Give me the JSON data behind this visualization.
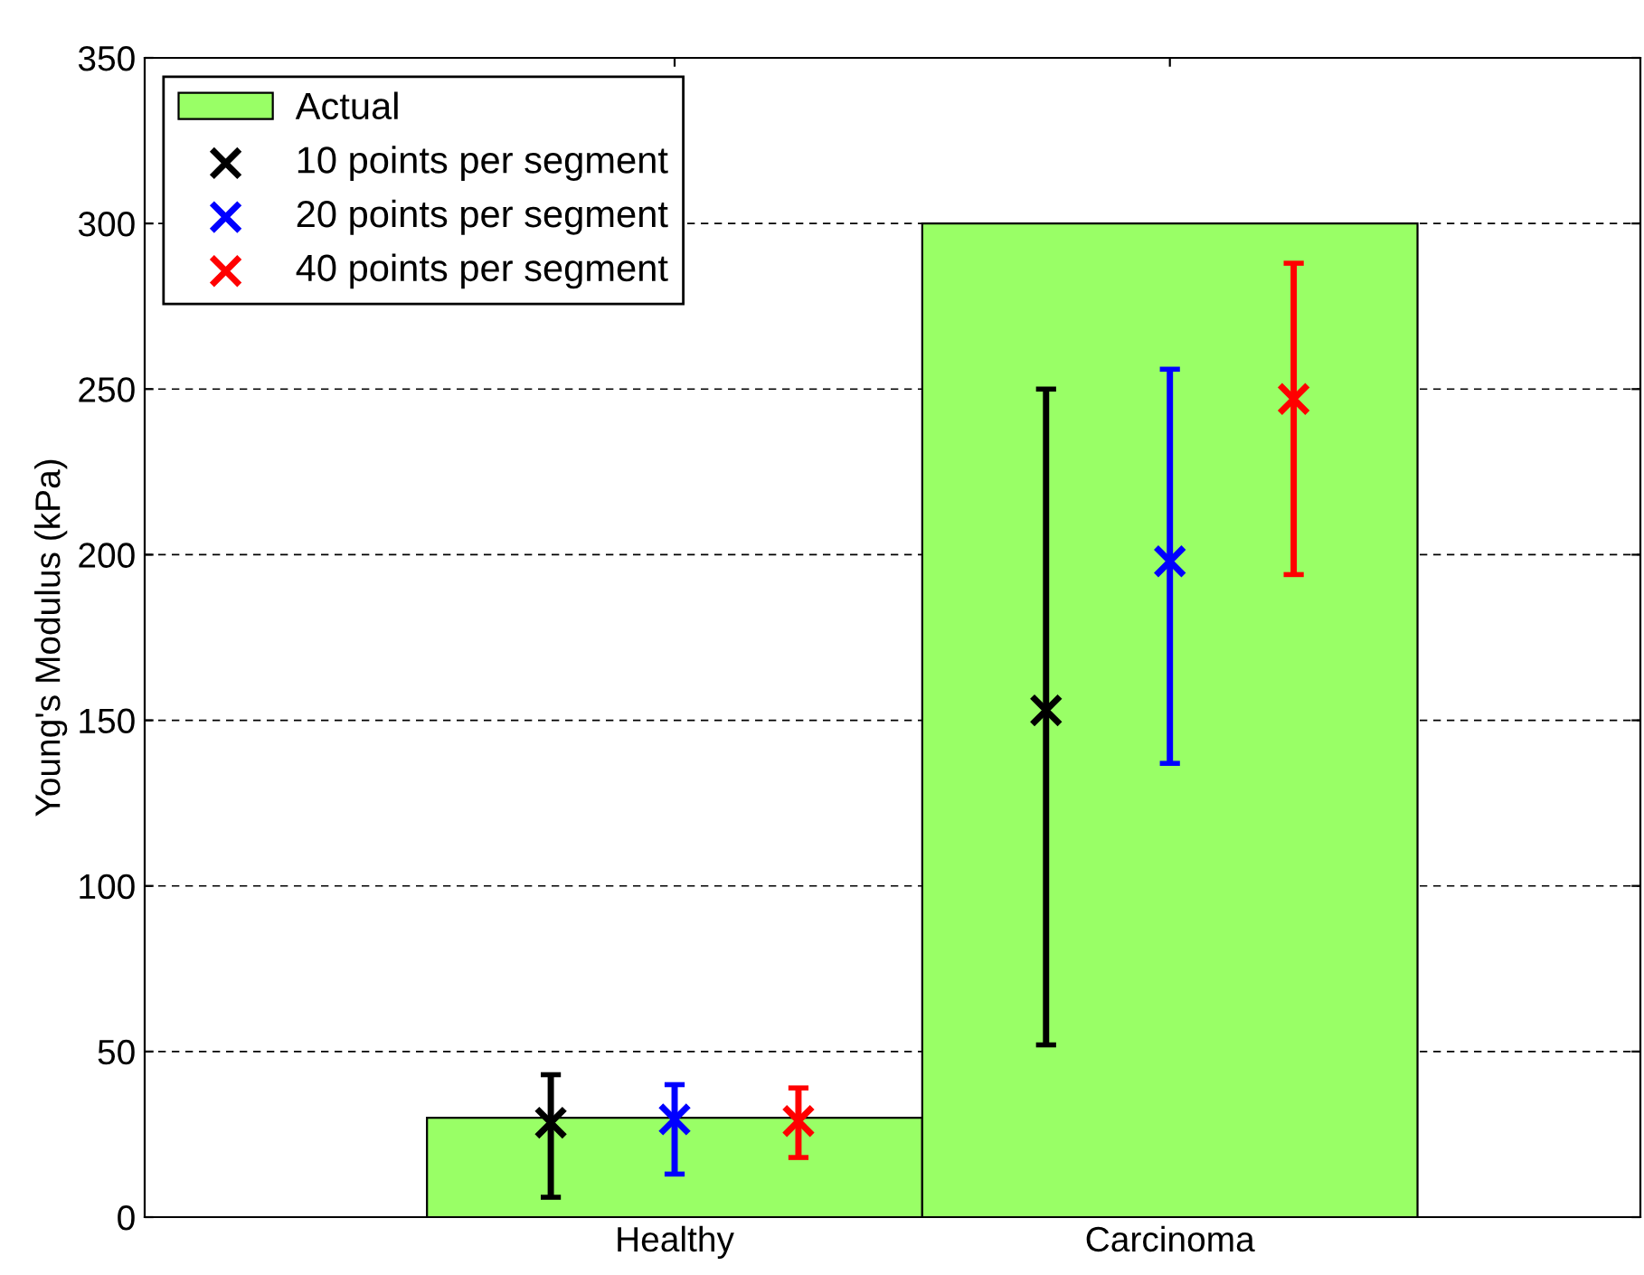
{
  "chart_data": {
    "type": "bar",
    "ylabel": "Young's Modulus (kPa)",
    "categories": [
      "Healthy",
      "Carcinoma"
    ],
    "series": [
      {
        "name": "Actual",
        "color": "#99ff66",
        "values": [
          30,
          300
        ]
      },
      {
        "name": "10 points per segment",
        "type": "scatter",
        "color": "#000000",
        "values": [
          28.5,
          153
        ],
        "errors": [
          [
            6,
            43
          ],
          [
            52,
            250
          ]
        ]
      },
      {
        "name": "20 points per segment",
        "type": "scatter",
        "color": "#0000ff",
        "values": [
          29.5,
          198
        ],
        "errors": [
          [
            13,
            40
          ],
          [
            137,
            256
          ]
        ]
      },
      {
        "name": "40 points per segment",
        "type": "scatter",
        "color": "#ff0000",
        "values": [
          29,
          247
        ],
        "errors": [
          [
            18,
            39
          ],
          [
            194,
            288
          ]
        ]
      }
    ],
    "ylim": [
      0,
      350
    ],
    "yticks": [
      0,
      50,
      100,
      150,
      200,
      250,
      300,
      350
    ],
    "grid": "y",
    "legend": "top left",
    "marker": "cross"
  }
}
